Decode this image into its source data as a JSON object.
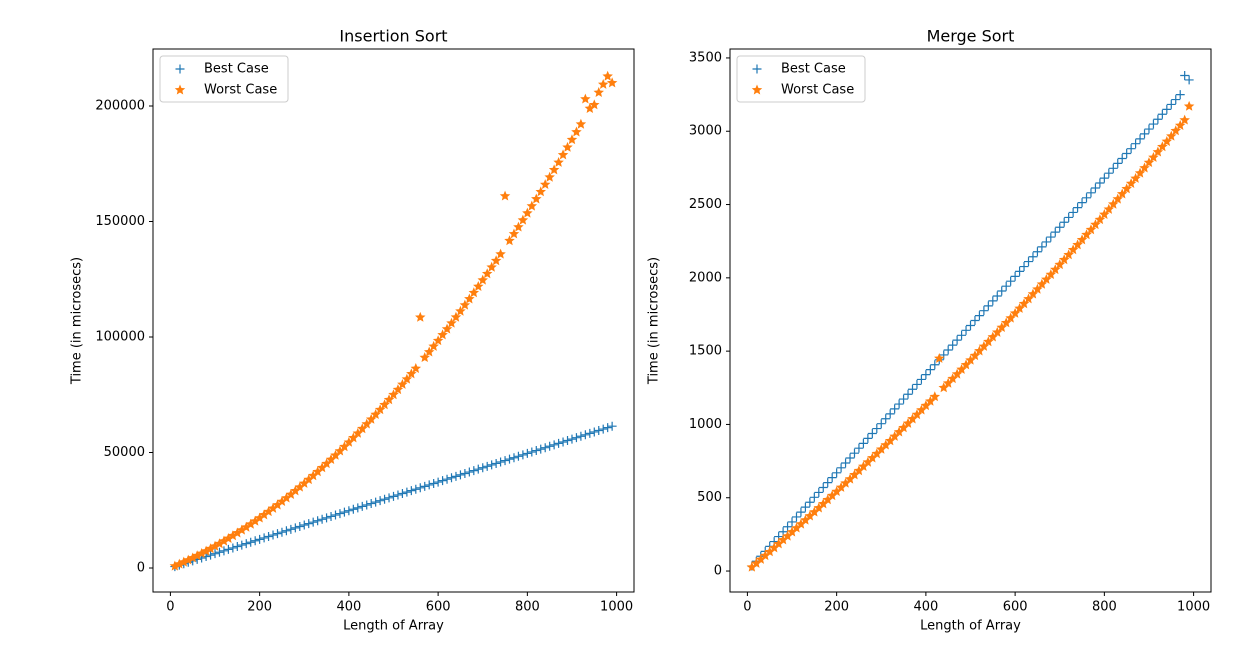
{
  "chart_data": [
    {
      "type": "scatter",
      "title": "Insertion Sort",
      "x_label": "Length of Array",
      "y_label": "Time (in microsecs)",
      "xlim": [
        -39,
        1039
      ],
      "ylim": [
        -10390,
        224675
      ],
      "xticks": [
        0,
        200,
        400,
        600,
        800,
        1000
      ],
      "yticks": [
        0,
        50000,
        100000,
        150000,
        200000
      ],
      "legend": "upper left",
      "x": [
        10,
        20,
        30,
        40,
        50,
        60,
        70,
        80,
        90,
        100,
        110,
        120,
        130,
        140,
        150,
        160,
        170,
        180,
        190,
        200,
        210,
        220,
        230,
        240,
        250,
        260,
        270,
        280,
        290,
        300,
        310,
        320,
        330,
        340,
        350,
        360,
        370,
        380,
        390,
        400,
        410,
        420,
        430,
        440,
        450,
        460,
        470,
        480,
        490,
        500,
        510,
        520,
        530,
        540,
        550,
        560,
        570,
        580,
        590,
        600,
        610,
        620,
        630,
        640,
        650,
        660,
        670,
        680,
        690,
        700,
        710,
        720,
        730,
        740,
        750,
        760,
        770,
        780,
        790,
        800,
        810,
        820,
        830,
        840,
        850,
        860,
        870,
        880,
        890,
        900,
        910,
        920,
        930,
        940,
        950,
        960,
        970,
        980,
        990
      ],
      "series": [
        {
          "name": "Best Case",
          "color": "#1f77b4",
          "marker": "plus",
          "values": [
            620,
            1240,
            1860,
            2480,
            3100,
            3720,
            4340,
            4960,
            5580,
            6200,
            6820,
            7440,
            8060,
            8680,
            9300,
            9920,
            10540,
            11160,
            11780,
            12400,
            13020,
            13640,
            14260,
            14880,
            15500,
            16120,
            16740,
            17360,
            17980,
            18600,
            19220,
            19840,
            20460,
            21080,
            21700,
            22320,
            22940,
            23560,
            24180,
            24800,
            25420,
            26040,
            26660,
            27280,
            27900,
            28520,
            29140,
            29760,
            30380,
            31000,
            31620,
            32240,
            32860,
            33480,
            34100,
            34720,
            35340,
            35960,
            36580,
            37200,
            37820,
            38440,
            39060,
            39680,
            40300,
            40920,
            41540,
            42160,
            42780,
            43400,
            44020,
            44640,
            45260,
            45880,
            46500,
            47120,
            47740,
            48360,
            48980,
            49600,
            50220,
            50840,
            51460,
            52080,
            52700,
            53320,
            53940,
            54560,
            55180,
            55800,
            56420,
            57040,
            57660,
            58280,
            58900,
            59520,
            60140,
            60760,
            61380
          ]
        },
        {
          "name": "Worst Case",
          "color": "#ff7f0e",
          "marker": "star",
          "values": [
            814,
            1656,
            2526,
            3424,
            4350,
            5304,
            6286,
            7296,
            8334,
            9400,
            10494,
            11616,
            12766,
            13944,
            15150,
            16384,
            17646,
            18936,
            20254,
            21600,
            22974,
            24376,
            25806,
            27264,
            28750,
            30264,
            31806,
            33376,
            34974,
            36600,
            38254,
            39936,
            41646,
            43384,
            45150,
            46944,
            48766,
            50616,
            52494,
            54400,
            56334,
            58296,
            60286,
            62304,
            64350,
            66424,
            68526,
            70656,
            72814,
            75000,
            77214,
            79456,
            81726,
            84024,
            86350,
            108500,
            91086,
            93496,
            95934,
            98400,
            100894,
            103416,
            105966,
            108544,
            111150,
            113784,
            116446,
            119136,
            121854,
            124600,
            127374,
            130176,
            133006,
            135864,
            161000,
            141664,
            144606,
            147576,
            150574,
            153600,
            156654,
            159736,
            162846,
            165984,
            169150,
            172344,
            175566,
            178816,
            182094,
            185400,
            188734,
            192096,
            203000,
            198904,
            200500,
            205824,
            209326,
            212856,
            210000
          ]
        }
      ]
    },
    {
      "type": "scatter",
      "title": "Merge Sort",
      "x_label": "Length of Array",
      "y_label": "Time (in microsecs)",
      "xlim": [
        -39,
        1039
      ],
      "ylim": [
        -143,
        3561
      ],
      "xticks": [
        0,
        200,
        400,
        600,
        800,
        1000
      ],
      "yticks": [
        0,
        500,
        1000,
        1500,
        2000,
        2500,
        3000,
        3500
      ],
      "legend": "upper left",
      "x": [
        10,
        20,
        30,
        40,
        50,
        60,
        70,
        80,
        90,
        100,
        110,
        120,
        130,
        140,
        150,
        160,
        170,
        180,
        190,
        200,
        210,
        220,
        230,
        240,
        250,
        260,
        270,
        280,
        290,
        300,
        310,
        320,
        330,
        340,
        350,
        360,
        370,
        380,
        390,
        400,
        410,
        420,
        430,
        440,
        450,
        460,
        470,
        480,
        490,
        500,
        510,
        520,
        530,
        540,
        550,
        560,
        570,
        580,
        590,
        600,
        610,
        620,
        630,
        640,
        650,
        660,
        670,
        680,
        690,
        700,
        710,
        720,
        730,
        740,
        750,
        760,
        770,
        780,
        790,
        800,
        810,
        820,
        830,
        840,
        850,
        860,
        870,
        880,
        890,
        900,
        910,
        920,
        930,
        940,
        950,
        960,
        970,
        980,
        990
      ],
      "series": [
        {
          "name": "Best Case",
          "color": "#1f77b4",
          "marker": "plus",
          "values": [
            34,
            67,
            101,
            134,
            168,
            201,
            235,
            268,
            302,
            335,
            369,
            402,
            436,
            469,
            503,
            536,
            570,
            603,
            637,
            670,
            704,
            737,
            771,
            804,
            838,
            871,
            905,
            938,
            972,
            1005,
            1039,
            1072,
            1106,
            1139,
            1173,
            1206,
            1240,
            1273,
            1307,
            1340,
            1374,
            1407,
            1441,
            1474,
            1508,
            1541,
            1575,
            1608,
            1642,
            1675,
            1709,
            1742,
            1776,
            1809,
            1843,
            1876,
            1910,
            1943,
            1977,
            2010,
            2044,
            2077,
            2111,
            2144,
            2178,
            2211,
            2245,
            2278,
            2312,
            2345,
            2379,
            2412,
            2446,
            2479,
            2513,
            2546,
            2580,
            2613,
            2647,
            2680,
            2714,
            2747,
            2781,
            2814,
            2848,
            2881,
            2915,
            2948,
            2982,
            3015,
            3049,
            3082,
            3116,
            3149,
            3183,
            3216,
            3250,
            3380,
            3350
          ]
        },
        {
          "name": "Worst Case",
          "color": "#ff7f0e",
          "marker": "star",
          "values": [
            26,
            52,
            79,
            105,
            131,
            158,
            185,
            212,
            238,
            266,
            293,
            320,
            347,
            375,
            402,
            430,
            458,
            486,
            514,
            542,
            570,
            599,
            627,
            656,
            684,
            713,
            742,
            771,
            800,
            830,
            859,
            888,
            918,
            948,
            977,
            1007,
            1037,
            1067,
            1098,
            1128,
            1158,
            1189,
            1450,
            1250,
            1281,
            1312,
            1343,
            1375,
            1406,
            1438,
            1469,
            1501,
            1532,
            1564,
            1596,
            1628,
            1661,
            1693,
            1725,
            1758,
            1791,
            1823,
            1856,
            1889,
            1922,
            1956,
            1989,
            2022,
            2056,
            2090,
            2123,
            2157,
            2191,
            2225,
            2259,
            2294,
            2328,
            2363,
            2397,
            2432,
            2467,
            2502,
            2537,
            2572,
            2607,
            2643,
            2678,
            2714,
            2749,
            2786,
            2821,
            2858,
            2894,
            2930,
            2966,
            3003,
            3039,
            3076,
            3170
          ]
        }
      ]
    }
  ]
}
